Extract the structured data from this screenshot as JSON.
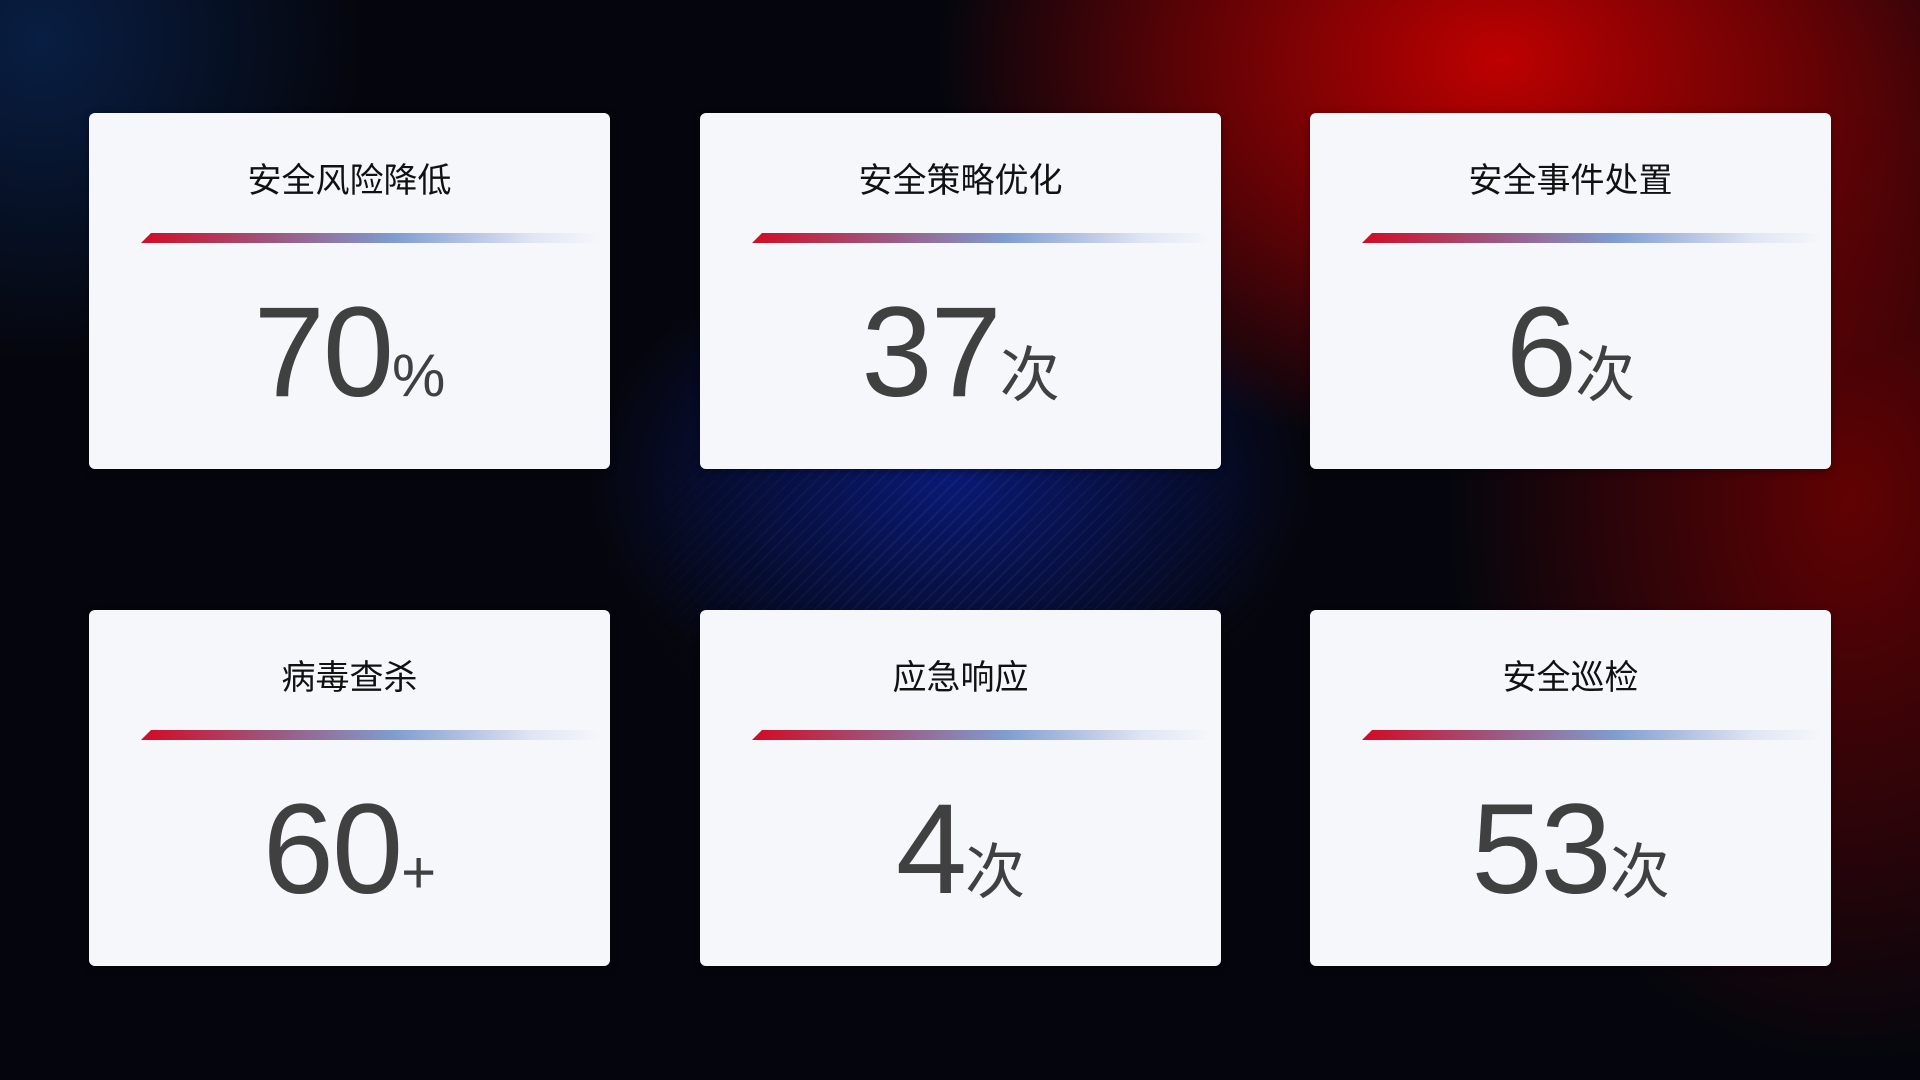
{
  "cards": [
    {
      "title": "安全风险降低",
      "value": "70",
      "unit": "%"
    },
    {
      "title": "安全策略优化",
      "value": "37",
      "unit": "次"
    },
    {
      "title": "安全事件处置",
      "value": "6",
      "unit": "次"
    },
    {
      "title": "病毒查杀",
      "value": "60",
      "unit": "+"
    },
    {
      "title": "应急响应",
      "value": "4",
      "unit": "次"
    },
    {
      "title": "安全巡检",
      "value": "53",
      "unit": "次"
    }
  ]
}
